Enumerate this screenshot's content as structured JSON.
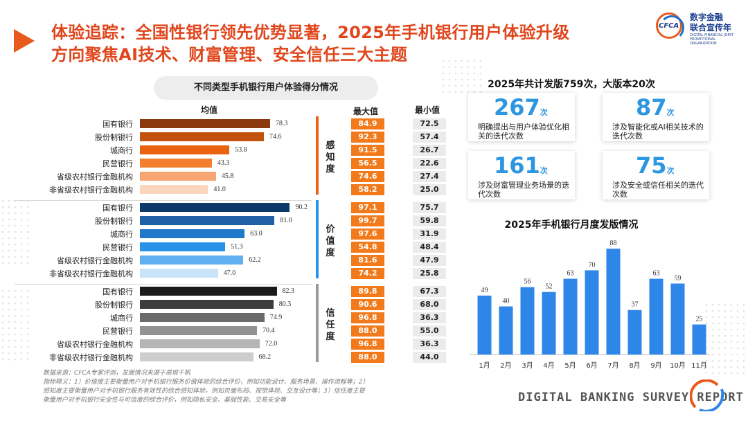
{
  "title_line1": "体验追踪：全国性银行领先优势显著，2025年手机银行用户体验升级",
  "title_line2": "方向聚焦AI技术、财富管理、安全信任三大主题",
  "logo": {
    "mark": "CFCA",
    "name_line1": "数字金融",
    "name_line2": "联合宣传年",
    "name_en": "DIGITAL FINANCIAL JOINT PROMOTIONAL ORGANIZATION"
  },
  "colors": {
    "accent": "#e85a1b",
    "blue": "#2d96e0",
    "max_box": "#f27a1a"
  },
  "left_panel": {
    "subtitle": "不同类型手机银行用户体验得分情况",
    "col_mean": "均值",
    "col_max": "最大值",
    "col_min": "最小值"
  },
  "chart_data": [
    {
      "type": "bar",
      "orientation": "horizontal",
      "title": "不同类型手机银行用户体验得分情况",
      "categories": [
        "国有银行",
        "股份制银行",
        "城商行",
        "民营银行",
        "省级农村银行金融机构",
        "非省级农村银行金融机构"
      ],
      "xlim": [
        0,
        100
      ],
      "groups": [
        {
          "name": "感知度",
          "means": [
            78.3,
            74.6,
            53.8,
            43.3,
            45.8,
            41.0
          ],
          "max": [
            "84.9",
            "92.3",
            "91.5",
            "56.5",
            "74.6",
            "58.2"
          ],
          "min": [
            "72.5",
            "57.4",
            "26.7",
            "22.6",
            "27.4",
            "25.0"
          ],
          "colors": [
            "#8b3a0f",
            "#c4520f",
            "#e8620f",
            "#f37e2e",
            "#f7a673",
            "#fcd5bd"
          ],
          "line_color": "#e8620f"
        },
        {
          "name": "价值度",
          "means": [
            90.2,
            81.0,
            63.0,
            51.3,
            62.2,
            47.0
          ],
          "max": [
            "97.1",
            "99.7",
            "97.6",
            "54.8",
            "81.6",
            "74.2"
          ],
          "min": [
            "75.7",
            "59.8",
            "31.9",
            "48.4",
            "47.9",
            "25.8"
          ],
          "colors": [
            "#0c3a6b",
            "#1f5fa3",
            "#1f78c8",
            "#2892e8",
            "#5fb0f0",
            "#c9e3f8"
          ],
          "line_color": "#2892e8"
        },
        {
          "name": "信任度",
          "means": [
            82.3,
            80.3,
            74.9,
            70.4,
            72.0,
            68.2
          ],
          "max": [
            "89.8",
            "90.6",
            "96.8",
            "88.0",
            "96.8",
            "88.0"
          ],
          "min": [
            "67.3",
            "68.0",
            "36.3",
            "55.0",
            "36.3",
            "44.0"
          ],
          "colors": [
            "#1a1a1a",
            "#3d3d3d",
            "#6a6a6a",
            "#929292",
            "#b5b5b5",
            "#cdcdcd"
          ],
          "line_color": "#9a9a9a"
        }
      ]
    },
    {
      "type": "bar",
      "title": "2025年手机银行月度发版情况",
      "categories": [
        "1月",
        "2月",
        "3月",
        "4月",
        "5月",
        "6月",
        "7月",
        "8月",
        "9月",
        "10月",
        "11月"
      ],
      "values": [
        49,
        40,
        56,
        52,
        63,
        70,
        88,
        37,
        63,
        59,
        25
      ],
      "ylim": [
        0,
        95
      ],
      "color": "#2d86e8"
    }
  ],
  "right_panel": {
    "summary": "2025年共计发版759次，大版本20次",
    "unit": "次",
    "cards": [
      {
        "num": "267",
        "desc": "明确提出与用户体验优化相关的迭代次数"
      },
      {
        "num": "87",
        "desc": "涉及智能化或AI相关技术的迭代次数"
      },
      {
        "num": "161",
        "desc": "涉及财富管理业务场景的迭代次数"
      },
      {
        "num": "75",
        "desc": "涉及安全或信任相关的迭代次数"
      }
    ]
  },
  "footnote": {
    "line1": "数据来源：CFCA专家评测，发版情况来源于易观千帆",
    "line2": "指标释义：1）价值度主要衡量用户对手机银行服务价值体验的综合评价，例如功能设计、服务场景、操作流程等；2）",
    "line3": "感知度主要衡量用户对手机银行服务有效性的综合感知体验，例如页面布局、视觉体验、交互设计等；3）信任度主要",
    "line4": "衡量用户对手机银行安全性与可信度的综合评价，例如隐私安全、基础性能、交易安全等"
  },
  "report_label": "DIGITAL BANKING SURVEY REPORT"
}
